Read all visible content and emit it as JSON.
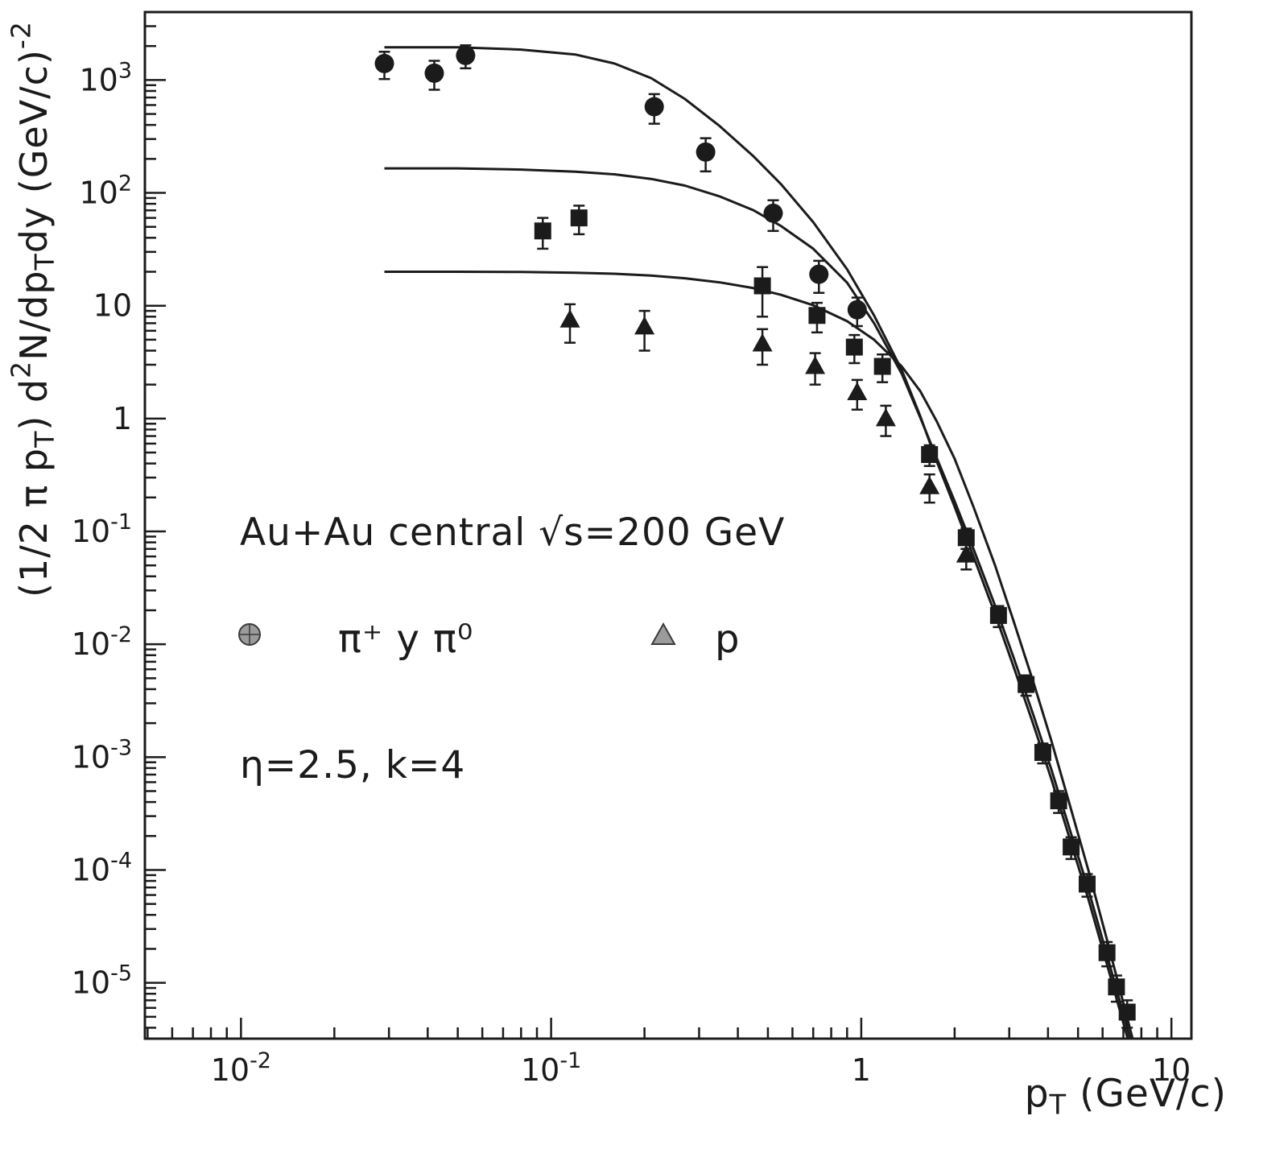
{
  "figure": {
    "background": "#ffffff",
    "ink_color": "#1b1b1b",
    "legend_marker_fill": "#9b9b9b",
    "legend_marker_stroke": "#3a3a3a"
  },
  "annotations": {
    "main": "Au+Au central √s=200 GeV",
    "params": "η=2.5, k=4"
  },
  "legend": {
    "items": [
      {
        "marker": "circle",
        "label": "π⁺ y π⁰"
      },
      {
        "marker": "triangle",
        "label": "p"
      }
    ]
  },
  "axes": {
    "x": {
      "scale": "log",
      "label_parts": [
        {
          "t": "p",
          "s": "n"
        },
        {
          "t": "T",
          "s": "sub"
        },
        {
          "t": " (GeV/c)",
          "s": "n"
        }
      ],
      "ticks": [
        {
          "v": 0.01,
          "base": "10",
          "exp": "-2"
        },
        {
          "v": 0.1,
          "base": "10",
          "exp": "-1"
        },
        {
          "v": 1,
          "base": "1",
          "exp": ""
        },
        {
          "v": 10,
          "base": "10",
          "exp": ""
        }
      ]
    },
    "y": {
      "scale": "log",
      "label_parts": [
        {
          "t": "(1/2 π p",
          "s": "n"
        },
        {
          "t": "T",
          "s": "sub"
        },
        {
          "t": ") d",
          "s": "n"
        },
        {
          "t": "2",
          "s": "sup"
        },
        {
          "t": "N/dp",
          "s": "n"
        },
        {
          "t": "T",
          "s": "sub"
        },
        {
          "t": "dy (GeV/c)",
          "s": "n"
        },
        {
          "t": "-2",
          "s": "sup"
        }
      ],
      "ticks": [
        {
          "v": 1000,
          "base": "10",
          "exp": "3"
        },
        {
          "v": 100,
          "base": "10",
          "exp": "2"
        },
        {
          "v": 10,
          "base": "10",
          "exp": ""
        },
        {
          "v": 1,
          "base": "1",
          "exp": ""
        },
        {
          "v": 0.1,
          "base": "10",
          "exp": "-1"
        },
        {
          "v": 0.01,
          "base": "10",
          "exp": "-2"
        },
        {
          "v": 0.001,
          "base": "10",
          "exp": "-3"
        },
        {
          "v": 0.0001,
          "base": "10",
          "exp": "-4"
        },
        {
          "v": 1e-05,
          "base": "10",
          "exp": "-5"
        }
      ]
    }
  },
  "chart_data": {
    "type": "scatter",
    "title": "Au+Au central √s=200 GeV, η=2.5, k=4",
    "xlabel": "pT (GeV/c)",
    "ylabel": "(1/2 π pT) d2N/dpTdy (GeV/c)-2",
    "xscale": "log",
    "yscale": "log",
    "xlim": [
      0.0049,
      11.6
    ],
    "ylim": [
      3.2e-06,
      4000
    ],
    "grid": false,
    "legend_position": "inside-left",
    "series": [
      {
        "id": "pions",
        "kind": "data",
        "marker": "circle",
        "label": "π⁺ y π⁰",
        "points": [
          [
            0.029,
            1400,
            380
          ],
          [
            0.042,
            1150,
            330
          ],
          [
            0.053,
            1650,
            380
          ],
          [
            0.215,
            580,
            170
          ],
          [
            0.315,
            230,
            75
          ],
          [
            0.52,
            66,
            20
          ],
          [
            0.73,
            19,
            6
          ],
          [
            0.97,
            9.2,
            2.6
          ]
        ]
      },
      {
        "id": "squares",
        "kind": "data",
        "marker": "square",
        "label": "",
        "points": [
          [
            0.094,
            46,
            14
          ],
          [
            0.123,
            60,
            17
          ],
          [
            0.48,
            15,
            7
          ],
          [
            0.72,
            8.2,
            2.4
          ],
          [
            0.95,
            4.3,
            1.2
          ],
          [
            1.17,
            2.9,
            0.8
          ],
          [
            1.66,
            0.48,
            0.1
          ],
          [
            2.18,
            0.088,
            0.018
          ],
          [
            2.77,
            0.018,
            0.0038
          ],
          [
            3.4,
            0.0044,
            0.0009
          ],
          [
            3.85,
            0.0011,
            0.00022
          ],
          [
            4.33,
            0.00041,
            9e-05
          ],
          [
            4.75,
            0.00016,
            3.5e-05
          ],
          [
            5.35,
            7.5e-05,
            1.7e-05
          ],
          [
            6.2,
            1.85e-05,
            4.5e-06
          ],
          [
            6.65,
            9.2e-06,
            2.4e-06
          ],
          [
            7.2,
            5.5e-06,
            1.5e-06
          ]
        ]
      },
      {
        "id": "protons",
        "kind": "data",
        "marker": "triangle",
        "label": "p",
        "points": [
          [
            0.115,
            7.5,
            2.8
          ],
          [
            0.2,
            6.5,
            2.5
          ],
          [
            0.48,
            4.6,
            1.6
          ],
          [
            0.71,
            2.9,
            0.9
          ],
          [
            0.97,
            1.7,
            0.5
          ],
          [
            1.2,
            1.0,
            0.3
          ],
          [
            1.66,
            0.25,
            0.07
          ],
          [
            2.18,
            0.062,
            0.016
          ]
        ]
      },
      {
        "id": "curve-top",
        "kind": "curve",
        "points": [
          [
            0.029,
            1950
          ],
          [
            0.05,
            1950
          ],
          [
            0.08,
            1860
          ],
          [
            0.12,
            1680
          ],
          [
            0.16,
            1400
          ],
          [
            0.21,
            1040
          ],
          [
            0.27,
            680
          ],
          [
            0.35,
            390
          ],
          [
            0.45,
            210
          ],
          [
            0.55,
            120
          ],
          [
            0.7,
            55
          ],
          [
            0.9,
            21
          ],
          [
            1.1,
            8.2
          ],
          [
            1.35,
            2.7
          ],
          [
            1.55,
            1.05
          ],
          [
            1.75,
            0.42
          ],
          [
            2.0,
            0.165
          ],
          [
            2.3,
            0.06
          ],
          [
            2.7,
            0.0185
          ],
          [
            3.1,
            0.0063
          ],
          [
            3.6,
            0.0019
          ],
          [
            4.1,
            0.00064
          ],
          [
            4.7,
            0.00019
          ],
          [
            5.4,
            5.5e-05
          ],
          [
            6.2,
            1.45e-05
          ],
          [
            7.0,
            4.4e-06
          ],
          [
            7.8,
            1.5e-06
          ],
          [
            8.6,
            5.2e-07
          ]
        ]
      },
      {
        "id": "curve-middle",
        "kind": "curve",
        "points": [
          [
            0.029,
            165
          ],
          [
            0.05,
            165
          ],
          [
            0.08,
            161
          ],
          [
            0.12,
            154
          ],
          [
            0.16,
            146
          ],
          [
            0.21,
            133
          ],
          [
            0.27,
            116
          ],
          [
            0.35,
            93
          ],
          [
            0.45,
            70
          ],
          [
            0.55,
            51
          ],
          [
            0.7,
            32
          ],
          [
            0.9,
            16
          ],
          [
            1.1,
            7.0
          ],
          [
            1.35,
            2.5
          ],
          [
            1.55,
            1.02
          ],
          [
            1.75,
            0.45
          ],
          [
            2.0,
            0.185
          ],
          [
            2.3,
            0.07
          ],
          [
            2.7,
            0.022
          ],
          [
            3.1,
            0.0076
          ],
          [
            3.6,
            0.0023
          ],
          [
            4.1,
            0.00078
          ],
          [
            4.7,
            0.00023
          ],
          [
            5.4,
            6.7e-05
          ],
          [
            6.2,
            1.75e-05
          ],
          [
            7.0,
            5.3e-06
          ],
          [
            7.8,
            1.8e-06
          ],
          [
            8.6,
            6.2e-07
          ]
        ]
      },
      {
        "id": "curve-bottom",
        "kind": "curve",
        "points": [
          [
            0.029,
            20
          ],
          [
            0.05,
            20
          ],
          [
            0.08,
            19.9
          ],
          [
            0.12,
            19.6
          ],
          [
            0.16,
            19.2
          ],
          [
            0.21,
            18.5
          ],
          [
            0.27,
            17.5
          ],
          [
            0.35,
            16.1
          ],
          [
            0.45,
            14.3
          ],
          [
            0.55,
            12.5
          ],
          [
            0.7,
            10.1
          ],
          [
            0.9,
            7.3
          ],
          [
            1.1,
            5.0
          ],
          [
            1.35,
            2.9
          ],
          [
            1.55,
            1.75
          ],
          [
            1.75,
            0.95
          ],
          [
            2.0,
            0.44
          ],
          [
            2.3,
            0.165
          ],
          [
            2.7,
            0.05
          ],
          [
            3.1,
            0.016
          ],
          [
            3.6,
            0.0045
          ],
          [
            4.1,
            0.0014
          ],
          [
            4.7,
            0.00038
          ],
          [
            5.4,
            9.9e-05
          ],
          [
            6.2,
            2.4e-05
          ],
          [
            7.0,
            6.6e-06
          ],
          [
            7.8,
            2.1e-06
          ],
          [
            8.6,
            6.6e-07
          ]
        ]
      }
    ]
  }
}
